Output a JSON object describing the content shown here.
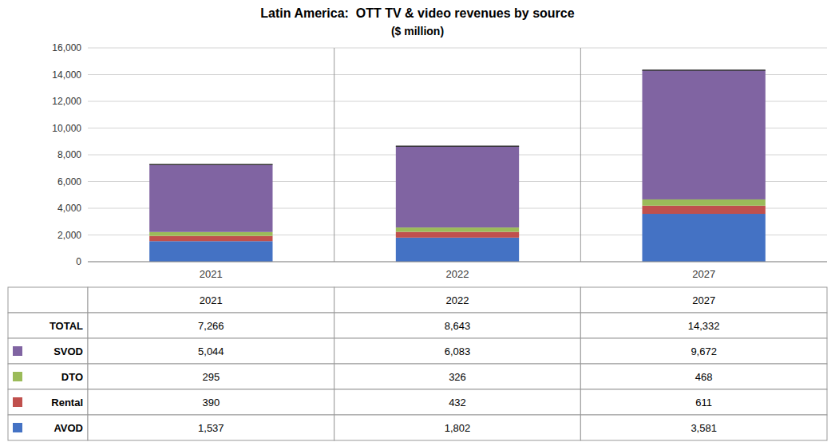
{
  "chart_data": {
    "type": "bar",
    "stacked": true,
    "title": "Latin America:  OTT TV & video revenues by source",
    "subtitle": "($ million)",
    "categories": [
      "2021",
      "2022",
      "2027"
    ],
    "series": [
      {
        "name": "AVOD",
        "color": "#4472C4",
        "values": [
          1537,
          1802,
          3581
        ],
        "value_labels": [
          "1,537",
          "1,802",
          "3,581"
        ]
      },
      {
        "name": "Rental",
        "color": "#C0504D",
        "values": [
          390,
          432,
          611
        ],
        "value_labels": [
          "390",
          "432",
          "611"
        ]
      },
      {
        "name": "DTO",
        "color": "#9BBB59",
        "values": [
          295,
          326,
          468
        ],
        "value_labels": [
          "295",
          "326",
          "468"
        ]
      },
      {
        "name": "SVOD",
        "color": "#8064A2",
        "values": [
          5044,
          6083,
          9672
        ],
        "value_labels": [
          "5,044",
          "6,083",
          "9,672"
        ]
      }
    ],
    "totals": {
      "name": "TOTAL",
      "values": [
        7266,
        8643,
        14332
      ],
      "value_labels": [
        "7,266",
        "8,643",
        "14,332"
      ]
    },
    "ylim": [
      0,
      16000
    ],
    "yticks": [
      0,
      {
        "value": 2000,
        "label": "2,000"
      },
      {
        "value": 4000,
        "label": "4,000"
      },
      {
        "value": 6000,
        "label": "6,000"
      },
      {
        "value": 8000,
        "label": "8,000"
      },
      {
        "value": 10000,
        "label": "10,000"
      },
      {
        "value": 12000,
        "label": "12,000"
      },
      {
        "value": 14000,
        "label": "14,000"
      },
      {
        "value": 16000,
        "label": "16,000"
      }
    ],
    "grid": true
  }
}
